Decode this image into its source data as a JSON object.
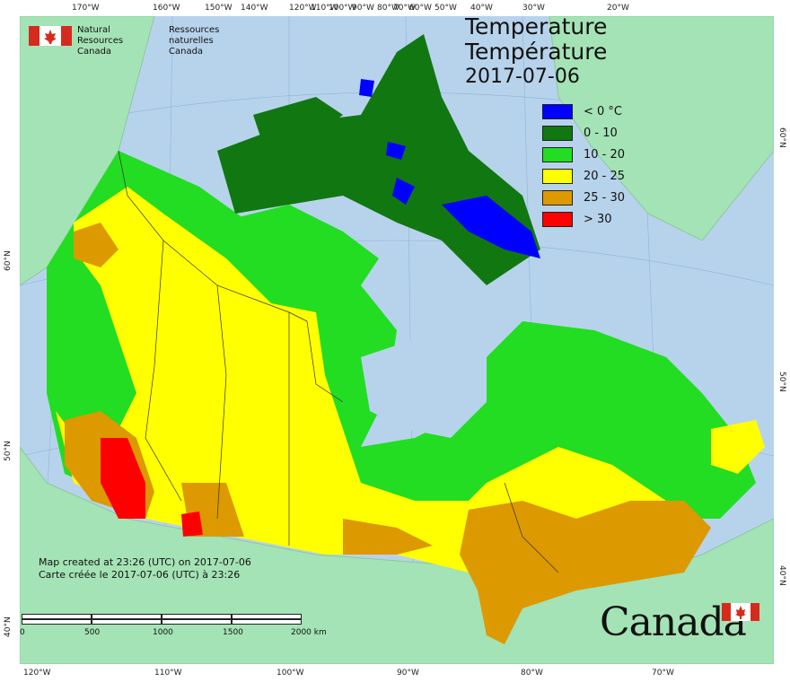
{
  "header": {
    "agency_en_line1": "Natural Resources",
    "agency_en_line2": "Canada",
    "agency_fr_line1": "Ressources naturelles",
    "agency_fr_line2": "Canada"
  },
  "title": {
    "en": "Temperature",
    "fr": "Température",
    "date": "2017-07-06"
  },
  "legend": [
    {
      "label": "< 0 °C",
      "color": "#0000ff"
    },
    {
      "label": "0 - 10",
      "color": "#117711"
    },
    {
      "label": "10 - 20",
      "color": "#22dd22"
    },
    {
      "label": "20 - 25",
      "color": "#ffff00"
    },
    {
      "label": "25 - 30",
      "color": "#dd9900"
    },
    {
      "label": "> 30",
      "color": "#ff0000"
    }
  ],
  "footnote": {
    "en": "Map created at 23:26 (UTC) on 2017-07-06",
    "fr": "Carte créée le 2017-07-06 (UTC) à 23:26"
  },
  "scale_bar": {
    "labels": [
      "0",
      "500",
      "1000",
      "1500",
      "2000 km"
    ]
  },
  "wordmark": "Canada",
  "graticule": {
    "top": [
      "170°W",
      "160°W",
      "150°W",
      "140°W",
      "120°W",
      "110°W",
      "100°W",
      "90°W",
      "80°W",
      "70°W",
      "60°W",
      "50°W",
      "40°W",
      "30°W",
      "20°W"
    ],
    "bottom": [
      "120°W",
      "110°W",
      "100°W",
      "90°W",
      "80°W",
      "70°W"
    ],
    "left": [
      "60°N",
      "50°N",
      "40°N"
    ],
    "right": [
      "60°N",
      "50°N",
      "40°N"
    ]
  },
  "colors": {
    "ocean": "#b7d3ec",
    "foreign_land": "#a4e3b5",
    "boundary": "#333333"
  }
}
